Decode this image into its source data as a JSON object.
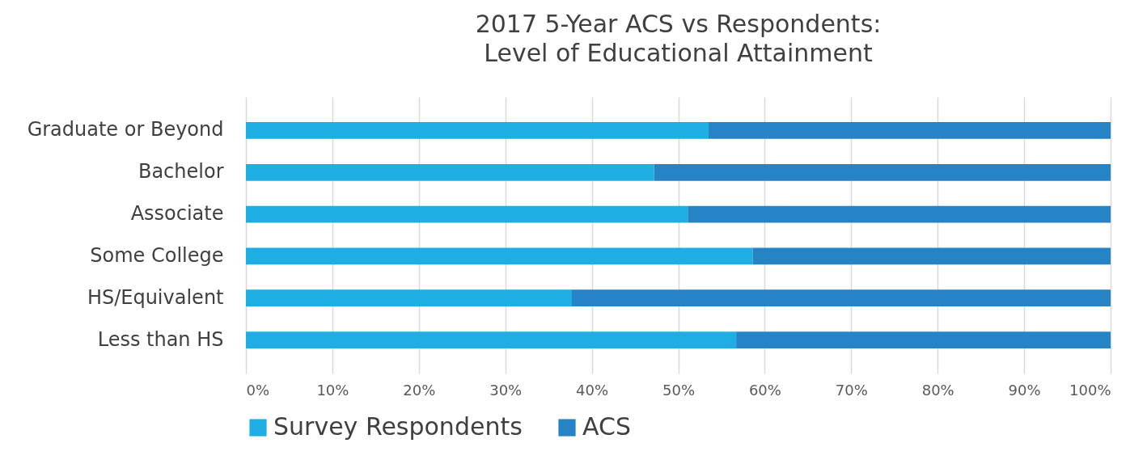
{
  "chart_data": {
    "type": "bar",
    "orientation": "horizontal",
    "stacked": true,
    "title": "2017 5-Year ACS vs Respondents:\nLevel of Educational Attainment",
    "categories": [
      "Graduate or Beyond",
      "Bachelor",
      "Associate",
      "Some College",
      "HS/Equivalent",
      "Less than HS"
    ],
    "series": [
      {
        "name": "Survey Respondents",
        "color": "#1eaee4",
        "values": [
          53.5,
          47.2,
          51.1,
          58.6,
          37.7,
          56.7
        ]
      },
      {
        "name": "ACS",
        "color": "#2683c6",
        "values": [
          46.5,
          52.8,
          48.9,
          41.4,
          62.3,
          43.3
        ]
      }
    ],
    "xlim": [
      0,
      100
    ],
    "xticks": [
      {
        "value": 0,
        "label": "0%"
      },
      {
        "value": 10,
        "label": "10%"
      },
      {
        "value": 20,
        "label": "20%"
      },
      {
        "value": 30,
        "label": "30%"
      },
      {
        "value": 40,
        "label": "40%"
      },
      {
        "value": 50,
        "label": "50%"
      },
      {
        "value": 60,
        "label": "60%"
      },
      {
        "value": 70,
        "label": "70%"
      },
      {
        "value": 80,
        "label": "80%"
      },
      {
        "value": 90,
        "label": "90%"
      },
      {
        "value": 100,
        "label": "100%"
      }
    ],
    "grid": "x",
    "legend": "bottom"
  }
}
